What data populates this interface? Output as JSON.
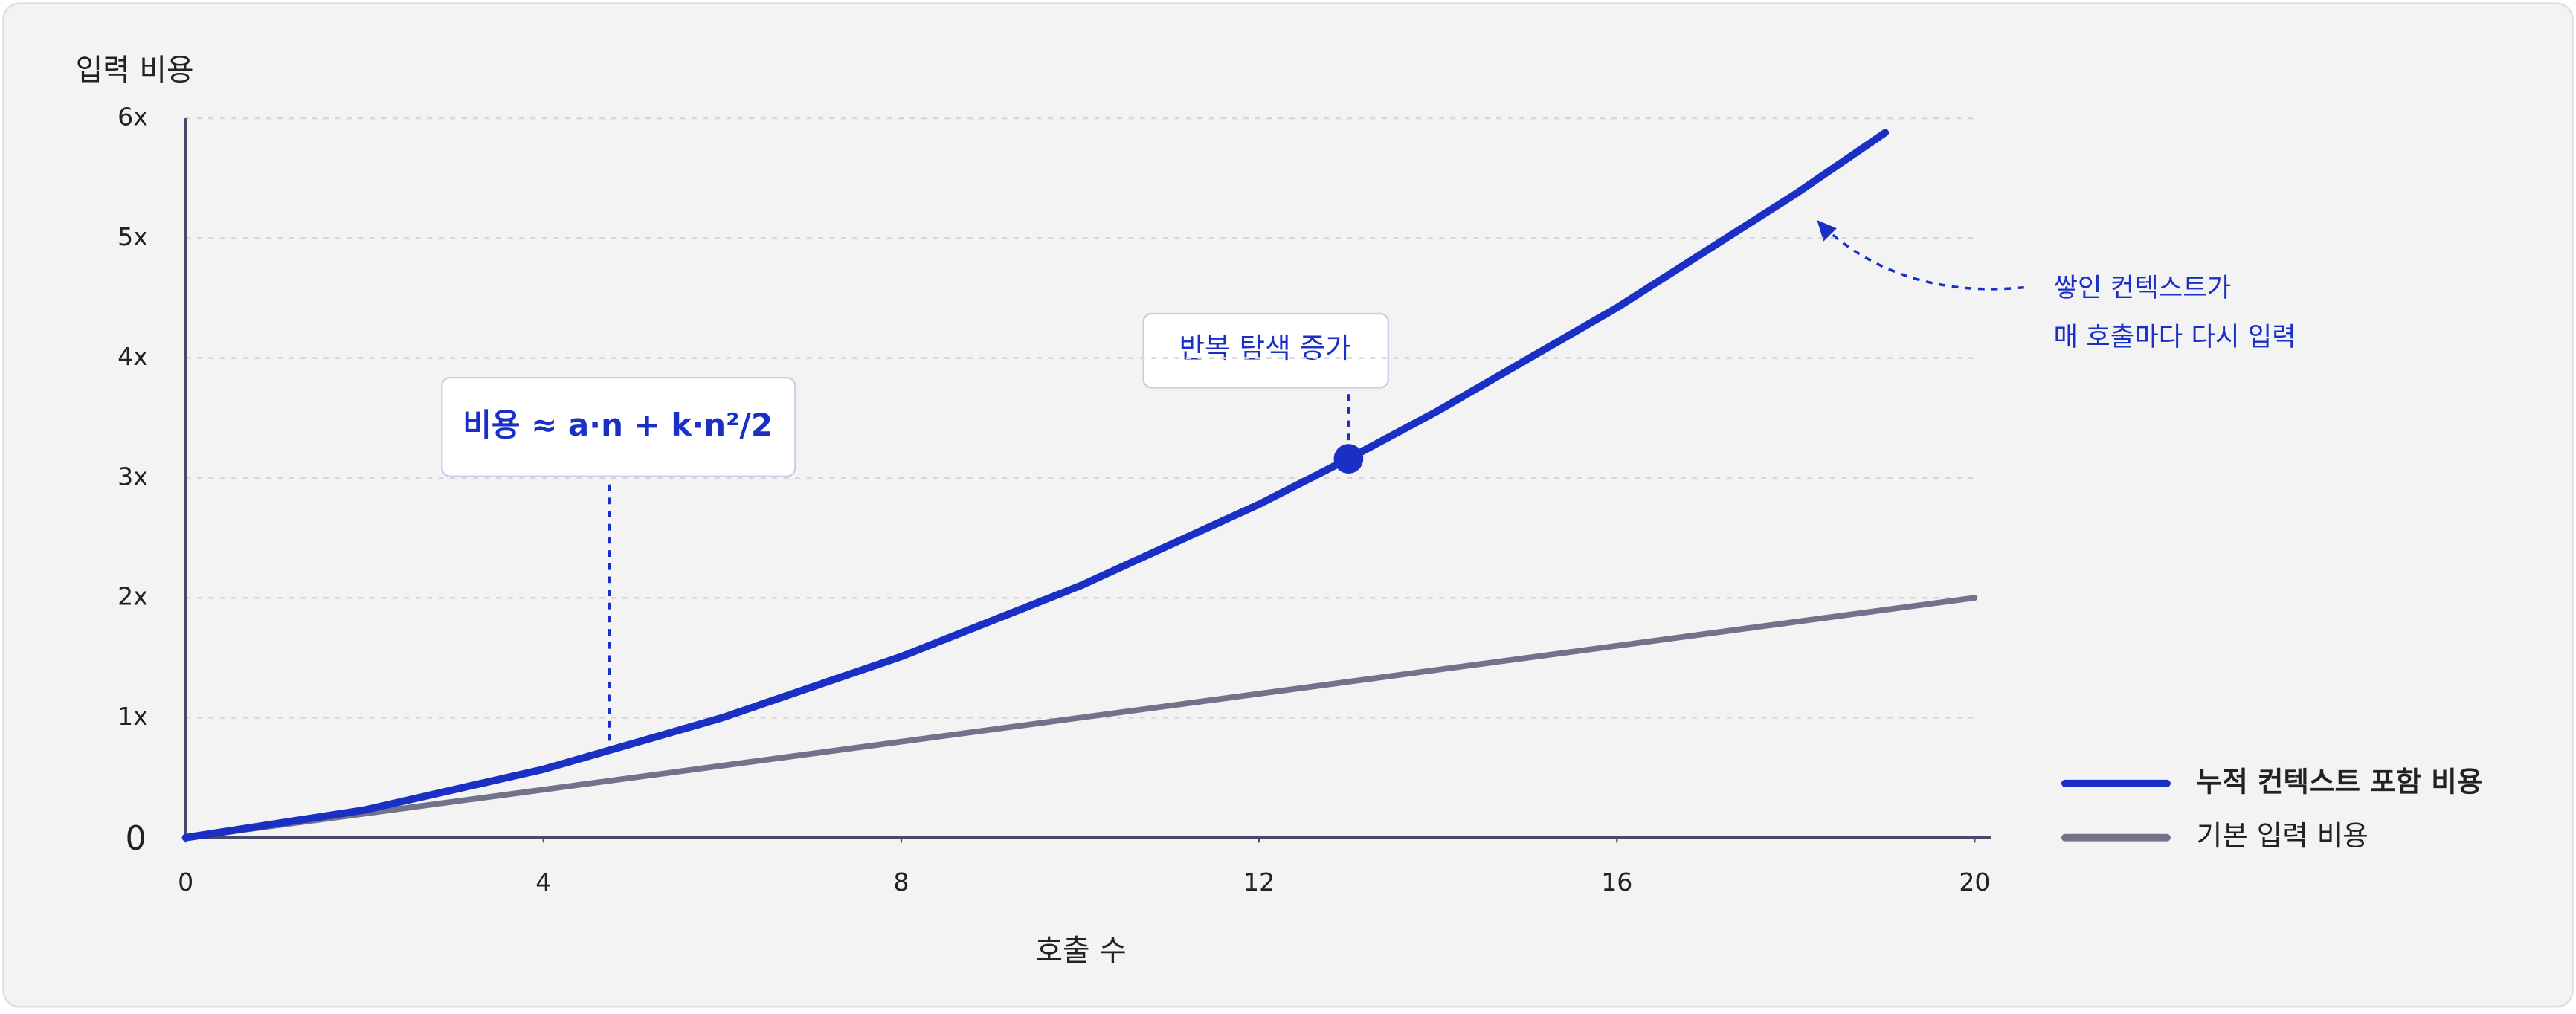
{
  "chart_data": {
    "type": "line",
    "ylabel": "입력 비용",
    "xlabel": "호출 수",
    "xlim": [
      0,
      20
    ],
    "xticks": [
      0,
      4,
      8,
      12,
      16,
      20
    ],
    "ylim": [
      0,
      6
    ],
    "yticks": [
      0,
      {
        "value": 1,
        "label": "1x"
      },
      {
        "value": 2,
        "label": "2x"
      },
      {
        "value": 3,
        "label": "3x"
      },
      {
        "value": 4,
        "label": "4x"
      },
      {
        "value": 5,
        "label": "5x"
      },
      {
        "value": 6,
        "label": "6x"
      }
    ],
    "grid": true,
    "legend": "lower right",
    "series": [
      {
        "name": "누적 컨텍스트 포함 비용",
        "color": "#1a2fc4",
        "x": [
          0,
          2,
          4,
          6,
          8,
          10,
          12,
          13,
          14,
          16,
          18,
          19
        ],
        "values": [
          0,
          0.23,
          0.57,
          1.0,
          1.51,
          2.1,
          2.78,
          3.16,
          3.56,
          4.42,
          5.37,
          5.88
        ]
      },
      {
        "name": "기본 입력 비용",
        "color": "#72728a",
        "x": [
          0,
          20
        ],
        "values": [
          0,
          2
        ]
      }
    ],
    "formula": "비용 ≈ a·n + k·n²/2",
    "highlight": {
      "text": "반복 탐색 증가",
      "x": 13,
      "y": 3.16
    },
    "note": [
      "쌓인 컨텍스트가",
      "매 호출마다 다시 입력"
    ]
  }
}
